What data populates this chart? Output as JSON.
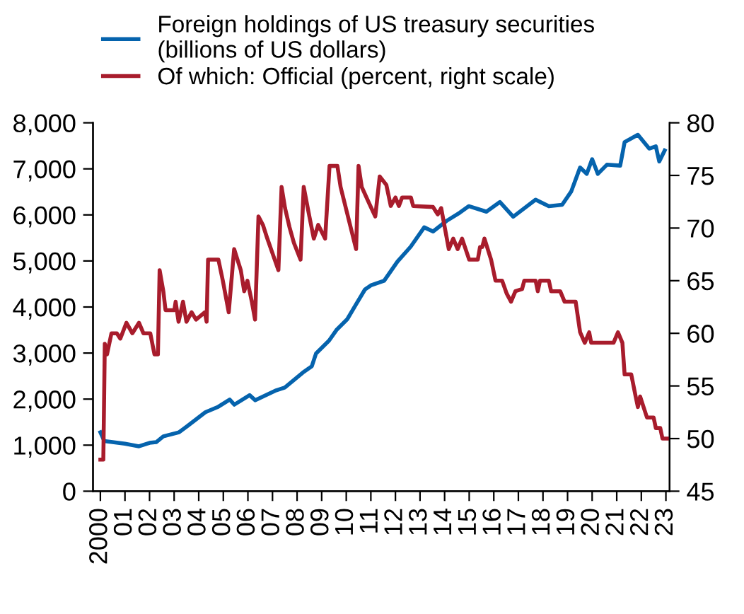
{
  "chart_data": {
    "type": "line",
    "legend": "top left",
    "grid": false,
    "marker": "none",
    "line_style": "solid",
    "xlim": [
      1999.7,
      2023.15
    ],
    "xticks": [
      {
        "value": 2000,
        "label": "2000"
      },
      {
        "value": 2001,
        "label": "01"
      },
      {
        "value": 2002,
        "label": "02"
      },
      {
        "value": 2003,
        "label": "03"
      },
      {
        "value": 2004,
        "label": "04"
      },
      {
        "value": 2005,
        "label": "05"
      },
      {
        "value": 2006,
        "label": "06"
      },
      {
        "value": 2007,
        "label": "07"
      },
      {
        "value": 2008,
        "label": "08"
      },
      {
        "value": 2009,
        "label": "09"
      },
      {
        "value": 2010,
        "label": "10"
      },
      {
        "value": 2011,
        "label": "11"
      },
      {
        "value": 2012,
        "label": "12"
      },
      {
        "value": 2013,
        "label": "13"
      },
      {
        "value": 2014,
        "label": "14"
      },
      {
        "value": 2015,
        "label": "15"
      },
      {
        "value": 2016,
        "label": "16"
      },
      {
        "value": 2017,
        "label": "17"
      },
      {
        "value": 2018,
        "label": "18"
      },
      {
        "value": 2019,
        "label": "19"
      },
      {
        "value": 2020,
        "label": "20"
      },
      {
        "value": 2021,
        "label": "21"
      },
      {
        "value": 2022,
        "label": "22"
      },
      {
        "value": 2023,
        "label": "23"
      }
    ],
    "ylim": [
      0,
      8000
    ],
    "yticks": [
      0,
      {
        "value": 1000,
        "label": "1,000"
      },
      {
        "value": 2000,
        "label": "2,000"
      },
      {
        "value": 3000,
        "label": "3,000"
      },
      {
        "value": 4000,
        "label": "4,000"
      },
      {
        "value": 5000,
        "label": "5,000"
      },
      {
        "value": 6000,
        "label": "6,000"
      },
      {
        "value": 7000,
        "label": "7,000"
      },
      {
        "value": 8000,
        "label": "8,000"
      }
    ],
    "y2lim": [
      45,
      80
    ],
    "y2ticks": [
      45,
      50,
      55,
      60,
      65,
      70,
      75,
      80
    ],
    "series": [
      {
        "name": "Foreign holdings of US treasury securities\n(billions of US dollars)",
        "color": "#0563ad",
        "x": [
          2000.0,
          2000.16,
          2001.0,
          2001.57,
          2002.0,
          2002.27,
          2002.56,
          2003.2,
          2003.55,
          2004.27,
          2004.8,
          2005.26,
          2005.45,
          2006.07,
          2006.3,
          2007.15,
          2007.5,
          2008.23,
          2008.6,
          2008.77,
          2009.3,
          2009.6,
          2010.04,
          2010.4,
          2010.76,
          2011.0,
          2011.54,
          2012.08,
          2012.62,
          2013.17,
          2013.53,
          2014.08,
          2014.62,
          2014.98,
          2015.7,
          2016.25,
          2016.79,
          2017.7,
          2018.24,
          2018.78,
          2019.15,
          2019.51,
          2019.78,
          2020.0,
          2020.23,
          2020.6,
          2021.14,
          2021.32,
          2021.86,
          2022.32,
          2022.59,
          2022.73,
          2022.95
        ],
        "values": [
          1280,
          1090,
          1030,
          975,
          1050,
          1065,
          1190,
          1280,
          1420,
          1715,
          1835,
          1990,
          1880,
          2085,
          1975,
          2190,
          2250,
          2575,
          2715,
          2990,
          3270,
          3500,
          3735,
          4060,
          4380,
          4470,
          4570,
          4985,
          5310,
          5730,
          5640,
          5870,
          6050,
          6190,
          6070,
          6280,
          5960,
          6330,
          6190,
          6220,
          6510,
          7030,
          6890,
          7210,
          6890,
          7090,
          7070,
          7580,
          7740,
          7440,
          7490,
          7160,
          7400
        ]
      },
      {
        "name": "Of which: Official (percent, right scale)",
        "color": "#a81c2c",
        "axis": "y2",
        "x": [
          2000.0,
          2000.12,
          2000.18,
          2000.27,
          2000.45,
          2000.67,
          2000.81,
          2001.06,
          2001.3,
          2001.57,
          2001.75,
          2002.03,
          2002.2,
          2002.34,
          2002.41,
          2002.56,
          2002.65,
          2003.01,
          2003.06,
          2003.18,
          2003.36,
          2003.5,
          2003.71,
          2003.89,
          2004.25,
          2004.32,
          2004.38,
          2004.8,
          2004.98,
          2005.22,
          2005.44,
          2005.71,
          2005.85,
          2005.98,
          2006.16,
          2006.29,
          2006.43,
          2006.61,
          2006.79,
          2006.97,
          2007.24,
          2007.37,
          2007.51,
          2007.69,
          2007.87,
          2008.14,
          2008.27,
          2008.5,
          2008.68,
          2008.86,
          2009.14,
          2009.32,
          2009.64,
          2009.77,
          2010.4,
          2010.5,
          2010.63,
          2010.94,
          2011.18,
          2011.36,
          2011.63,
          2011.81,
          2012.0,
          2012.14,
          2012.27,
          2012.63,
          2012.72,
          2013.53,
          2013.72,
          2013.86,
          2014.17,
          2014.35,
          2014.53,
          2014.71,
          2015.0,
          2015.35,
          2015.44,
          2015.53,
          2015.62,
          2015.89,
          2016.07,
          2016.34,
          2016.52,
          2016.7,
          2016.88,
          2017.15,
          2017.24,
          2017.7,
          2017.79,
          2017.88,
          2018.24,
          2018.33,
          2018.7,
          2018.88,
          2019.33,
          2019.51,
          2019.7,
          2019.88,
          2019.96,
          2020.87,
          2021.05,
          2021.23,
          2021.32,
          2021.59,
          2021.77,
          2021.86,
          2021.95,
          2022.23,
          2022.5,
          2022.59,
          2022.77,
          2022.86,
          2023.05
        ],
        "values": [
          48,
          48,
          59,
          58,
          60,
          60,
          59.5,
          61,
          60,
          61,
          60,
          60,
          58,
          58,
          66,
          64,
          62.2,
          62.2,
          63,
          61.1,
          63,
          61.1,
          62,
          61.3,
          62,
          61.1,
          67,
          67,
          65,
          62,
          68,
          66,
          64,
          65,
          63,
          61.3,
          71.1,
          70.3,
          69,
          67.8,
          66,
          73.9,
          71.9,
          70.1,
          68.6,
          67,
          73.9,
          71.1,
          69,
          70.3,
          69,
          75.9,
          75.9,
          73.9,
          68,
          75.9,
          73.9,
          72.3,
          71.1,
          74.9,
          74.1,
          72.1,
          72.9,
          72.1,
          72.9,
          72.9,
          72.1,
          72,
          71.3,
          71.9,
          68,
          69,
          68,
          69,
          67,
          67,
          68.2,
          68.2,
          69,
          67,
          65,
          65,
          63.8,
          63,
          64,
          64.2,
          65,
          65,
          64,
          65,
          65,
          64,
          64,
          63,
          63,
          60.1,
          59.1,
          60.1,
          59.1,
          59.1,
          60.1,
          59.1,
          56.1,
          56.1,
          54,
          53,
          54,
          52,
          52,
          51,
          51,
          50,
          50
        ]
      }
    ]
  }
}
